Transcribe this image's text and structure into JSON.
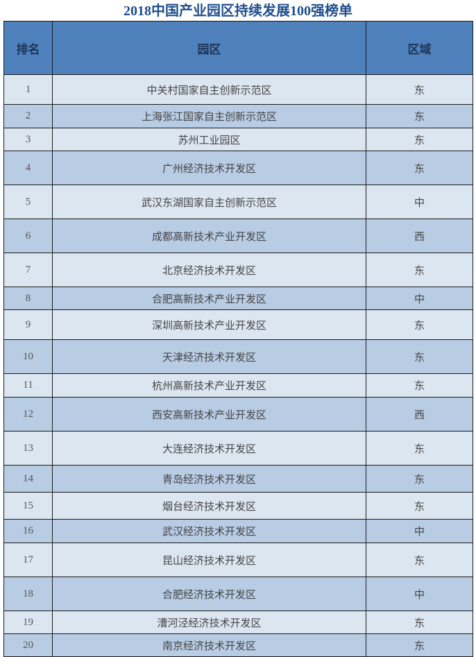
{
  "title": "2018中国产业园区持续发展100强榜单",
  "columns": {
    "rank": "排名",
    "park": "园区",
    "region": "区域"
  },
  "colors": {
    "header_bg": "#4f81bd",
    "row_light": "#dce6f1",
    "row_dark": "#b8cce4",
    "title": "#1f4e8c"
  },
  "rows": [
    {
      "rank": "1",
      "park": "中关村国家自主创新示范区",
      "region": "东"
    },
    {
      "rank": "2",
      "park": "上海张江国家自主创新示范区",
      "region": "东"
    },
    {
      "rank": "3",
      "park": "苏州工业园区",
      "region": "东"
    },
    {
      "rank": "4",
      "park": "广州经济技术开发区",
      "region": "东"
    },
    {
      "rank": "5",
      "park": "武汉东湖国家自主创新示范区",
      "region": "中"
    },
    {
      "rank": "6",
      "park": "成都高新技术产业开发区",
      "region": "西"
    },
    {
      "rank": "7",
      "park": "北京经济技术开发区",
      "region": "东"
    },
    {
      "rank": "8",
      "park": "合肥高新技术产业开发区",
      "region": "中"
    },
    {
      "rank": "9",
      "park": "深圳高新技术产业开发区",
      "region": "东"
    },
    {
      "rank": "10",
      "park": "天津经济技术开发区",
      "region": "东"
    },
    {
      "rank": "11",
      "park": "杭州高新技术产业开发区",
      "region": "东"
    },
    {
      "rank": "12",
      "park": "西安高新技术产业开发区",
      "region": "西"
    },
    {
      "rank": "13",
      "park": "大连经济技术开发区",
      "region": "东"
    },
    {
      "rank": "14",
      "park": "青岛经济技术开发区",
      "region": "东"
    },
    {
      "rank": "15",
      "park": "烟台经济技术开发区",
      "region": "东"
    },
    {
      "rank": "16",
      "park": "武汉经济技术开发区",
      "region": "中"
    },
    {
      "rank": "17",
      "park": "昆山经济技术开发区",
      "region": "东"
    },
    {
      "rank": "18",
      "park": "合肥经济技术开发区",
      "region": "中"
    },
    {
      "rank": "19",
      "park": "漕河泾经济技术开发区",
      "region": "东"
    },
    {
      "rank": "20",
      "park": "南京经济技术开发区",
      "region": "东"
    }
  ]
}
